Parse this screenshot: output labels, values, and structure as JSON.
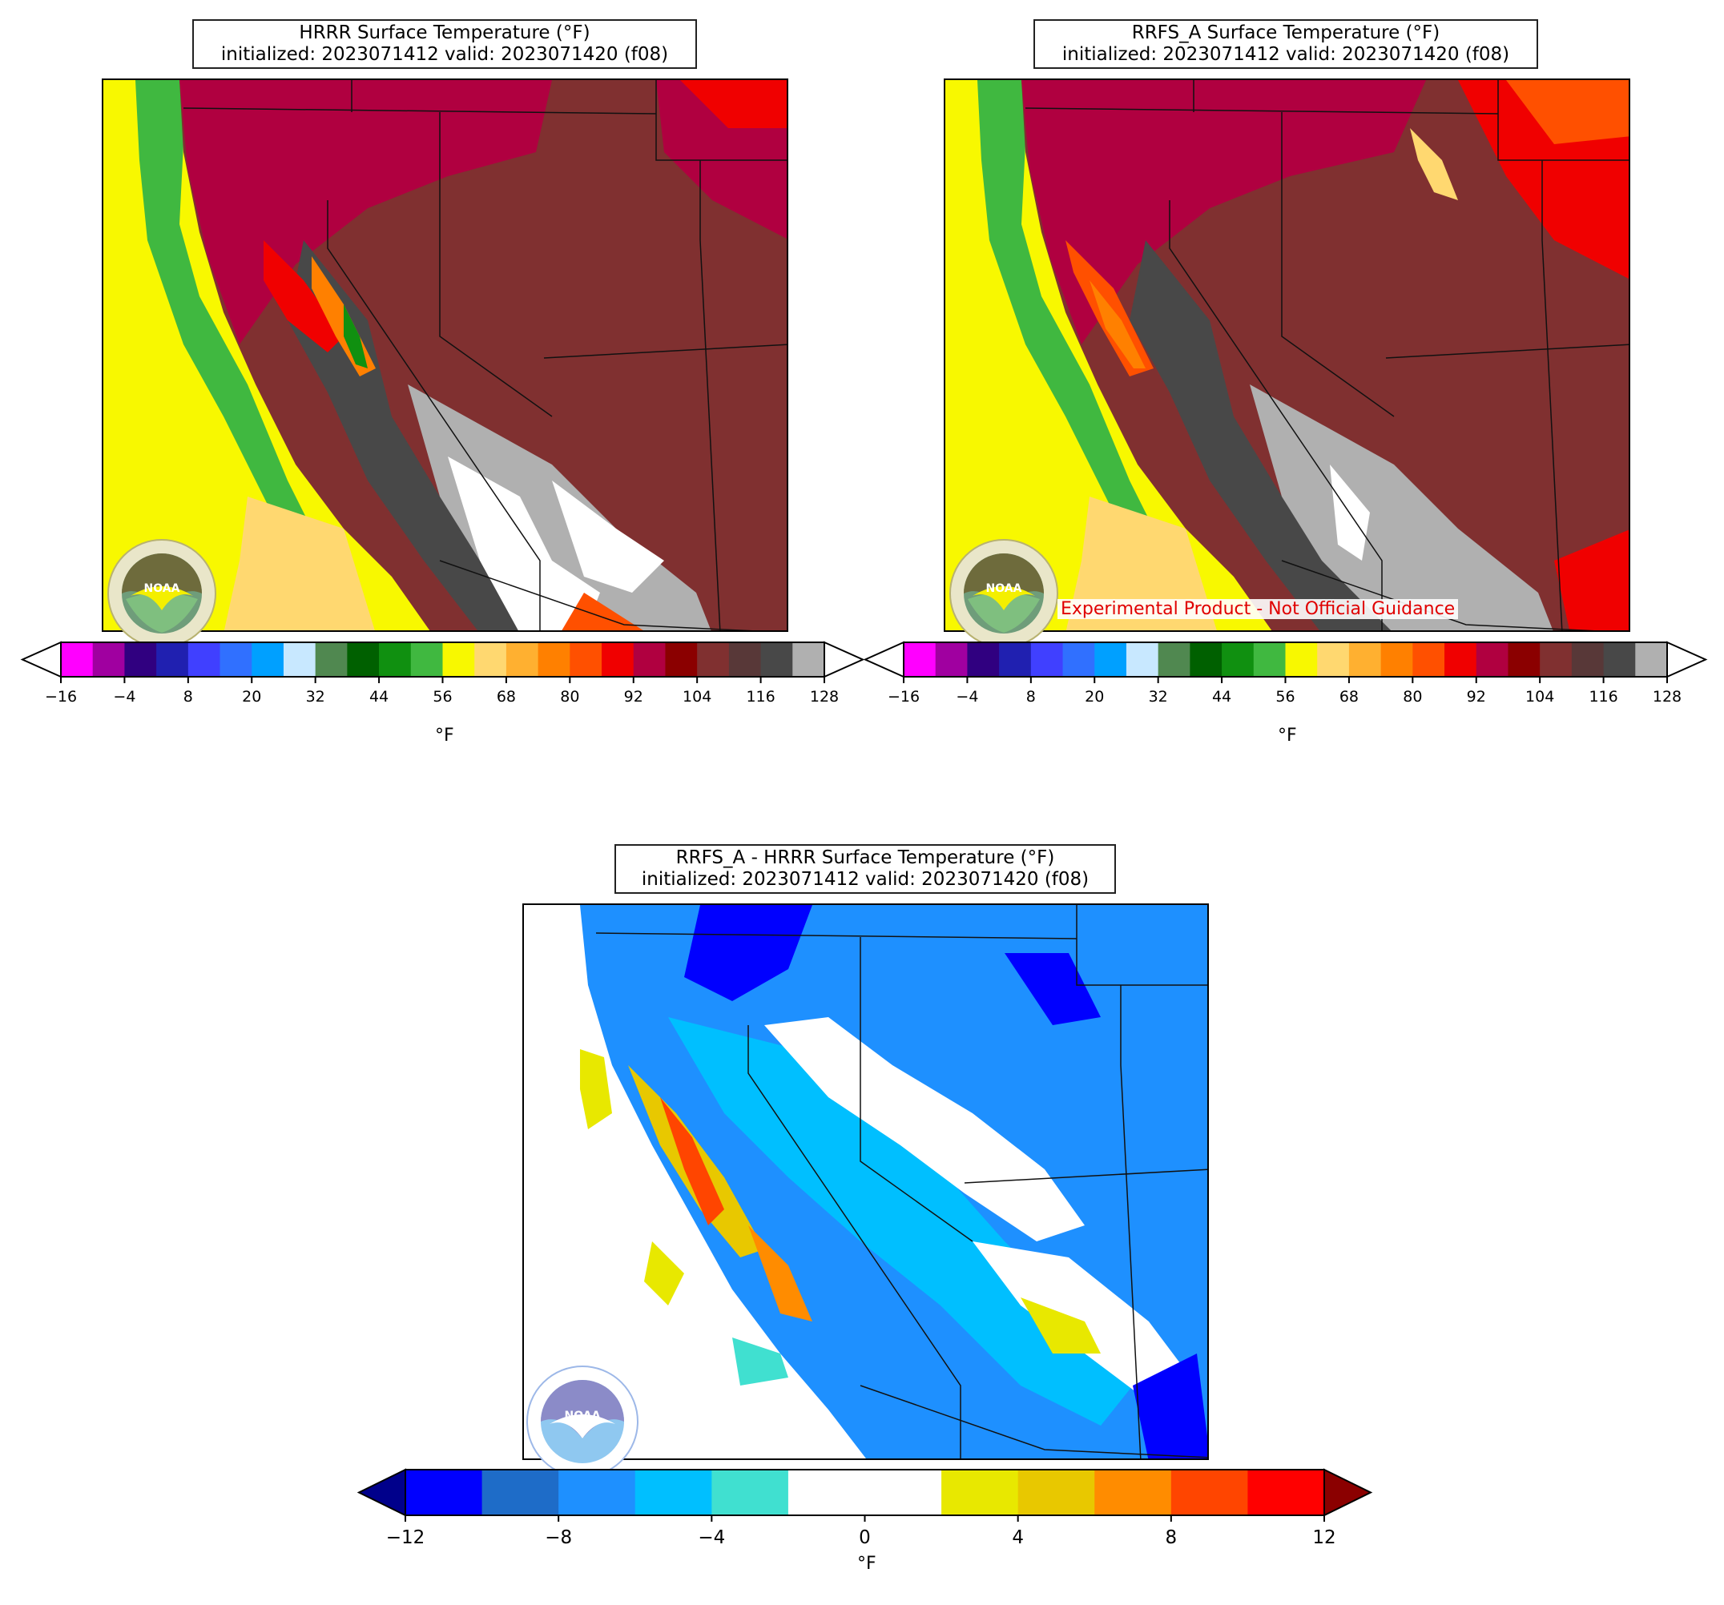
{
  "panels": [
    {
      "title_line1": "HRRR Surface Temperature (°F)",
      "title_line2": "initialized: 2023071412 valid: 2023071420 (f08)",
      "logo_text": "NOAA"
    },
    {
      "title_line1": "RRFS_A Surface Temperature (°F)",
      "title_line2": "initialized: 2023071412 valid: 2023071420 (f08)",
      "logo_text": "NOAA",
      "watermark": "Experimental Product - Not Official Guidance"
    },
    {
      "title_line1": "RRFS_A - HRRR Surface Temperature (°F)",
      "title_line2": "initialized: 2023071412 valid: 2023071420 (f08)",
      "logo_text": "NOAA"
    }
  ],
  "temp_colorbar": {
    "unit": "°F",
    "ticks": [
      "−16",
      "−4",
      "8",
      "20",
      "32",
      "44",
      "56",
      "68",
      "80",
      "92",
      "104",
      "116",
      "128"
    ],
    "colors": [
      "#ff00ff",
      "#a000a0",
      "#300080",
      "#2020b0",
      "#4040ff",
      "#3070ff",
      "#00a0ff",
      "#c8e8ff",
      "#508850",
      "#006000",
      "#109010",
      "#40b840",
      "#f8f800",
      "#ffd870",
      "#ffb030",
      "#ff8000",
      "#ff5000",
      "#f00000",
      "#b00040",
      "#8b0000",
      "#803030",
      "#583838",
      "#484848",
      "#b0b0b0"
    ],
    "extend_low_color": "#ffffff",
    "extend_high_color": "#ffffff"
  },
  "diff_colorbar": {
    "unit": "°F",
    "ticks": [
      "−12",
      "−8",
      "−4",
      "0",
      "4",
      "8",
      "12"
    ],
    "colors": [
      "#0000ff",
      "#1e6cc8",
      "#1e90ff",
      "#00bfff",
      "#40e0d0",
      "#ffffff",
      "#ffffff",
      "#e8e800",
      "#e8c800",
      "#ff8c00",
      "#ff4500",
      "#ff0000"
    ],
    "extend_low_color": "#00008b",
    "extend_high_color": "#8b0000"
  }
}
